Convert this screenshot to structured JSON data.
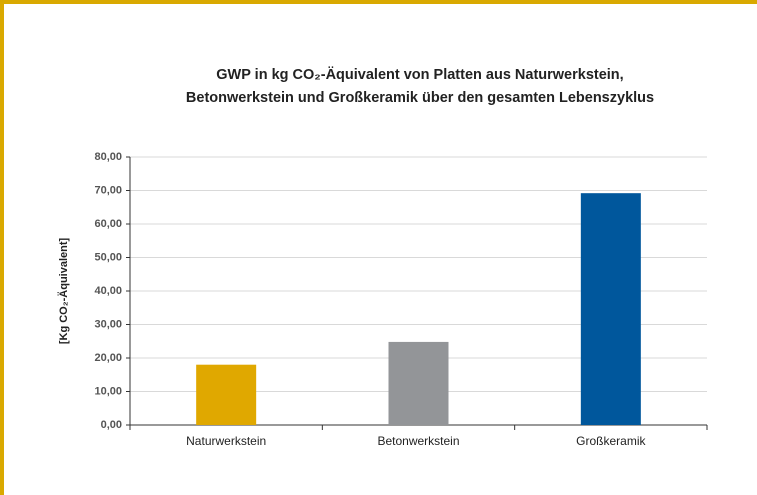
{
  "chart_data": {
    "type": "bar",
    "title": [
      "GWP in kg CO₂-Äquivalent von Platten aus Naturwerkstein,",
      "Betonwerkstein und Großkeramik über den gesamten Lebenszyklus"
    ],
    "y_label": "[Kg CO₂-Äquivalent]",
    "categories": [
      "Naturwerkstein",
      "Betonwerkstein",
      "Großkeramik"
    ],
    "values": [
      18,
      24.8,
      69.2
    ],
    "colors": [
      "#e0a800",
      "#939598",
      "#00579c"
    ],
    "ylim": [
      0,
      80
    ],
    "yticks": [
      {
        "value": 0,
        "label": "0,00"
      },
      {
        "value": 10,
        "label": "10,00"
      },
      {
        "value": 20,
        "label": "20,00"
      },
      {
        "value": 30,
        "label": "30,00"
      },
      {
        "value": 40,
        "label": "40,00"
      },
      {
        "value": 50,
        "label": "50,00"
      },
      {
        "value": 60,
        "label": "60,00"
      },
      {
        "value": 70,
        "label": "70,00"
      },
      {
        "value": 80,
        "label": "80,00"
      }
    ],
    "grid": true
  }
}
